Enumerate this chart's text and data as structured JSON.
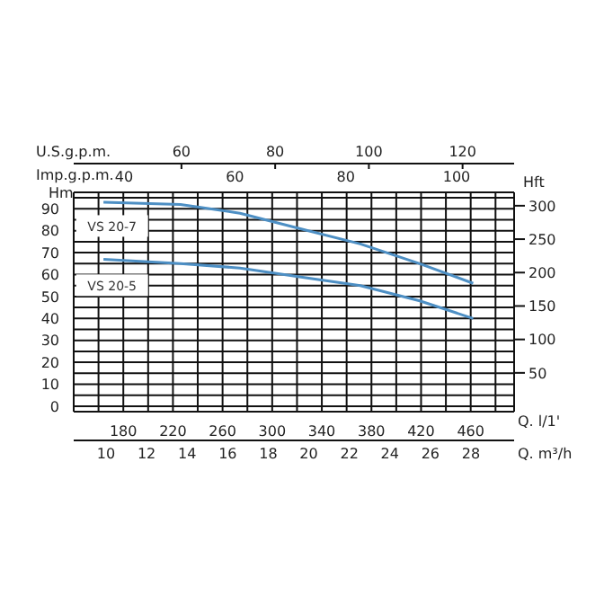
{
  "chart_data": {
    "type": "line",
    "xlabel": "Q. l/1'",
    "ylabel": "Hm",
    "y2label": "Hft",
    "x2label": "U.S.g.p.m.",
    "xlim": [
      140,
      495
    ],
    "xticks": [
      {
        "value": 160,
        "label": null
      },
      180,
      {
        "value": 200,
        "label": null
      },
      220,
      {
        "value": 240,
        "label": null
      },
      260,
      {
        "value": 280,
        "label": null
      },
      300,
      {
        "value": 320,
        "label": null
      },
      340,
      {
        "value": 360,
        "label": null
      },
      380,
      {
        "value": 400,
        "label": null
      },
      420,
      {
        "value": 440,
        "label": null
      },
      460,
      {
        "value": 480,
        "label": null
      }
    ],
    "ylim": [
      -2.5,
      97.5
    ],
    "yticks": [
      0,
      {
        "value": 5,
        "label": null
      },
      10,
      {
        "value": 15,
        "label": null
      },
      20,
      {
        "value": 25,
        "label": null
      },
      30,
      {
        "value": 35,
        "label": null
      },
      40,
      {
        "value": 45,
        "label": null
      },
      50,
      {
        "value": 55,
        "label": null
      },
      60,
      {
        "value": 65,
        "label": null
      },
      70,
      {
        "value": 75,
        "label": null
      },
      80,
      {
        "value": 85,
        "label": null
      },
      90,
      {
        "value": 95,
        "label": null
      }
    ],
    "y2lim": [
      -8,
      320
    ],
    "y2ticks": [
      50,
      100,
      150,
      200,
      250,
      300
    ],
    "x2lim": [
      37,
      131
    ],
    "x2ticks": [
      60,
      80,
      100,
      120
    ],
    "annotations": [
      "Imp.g.p.m.",
      "40",
      "60",
      "80",
      "100",
      "Q. m³/h",
      "10",
      "12",
      "14",
      "16",
      "18",
      "20",
      "22",
      "24",
      "26",
      "28"
    ],
    "grid": true,
    "marker": "none",
    "line_style": "solid",
    "series": [
      {
        "name": "VS 20-7",
        "color": "#4d8fc4",
        "x": [
          164,
          226,
          274,
          322,
          371,
          419,
          462
        ],
        "values": [
          93,
          92,
          88,
          81,
          74,
          65,
          56
        ]
      },
      {
        "name": "VS 20-5",
        "color": "#4d8fc4",
        "x": [
          164,
          226,
          274,
          322,
          371,
          419,
          462
        ],
        "values": [
          67,
          65,
          63,
          59,
          55,
          48,
          40
        ]
      }
    ]
  }
}
